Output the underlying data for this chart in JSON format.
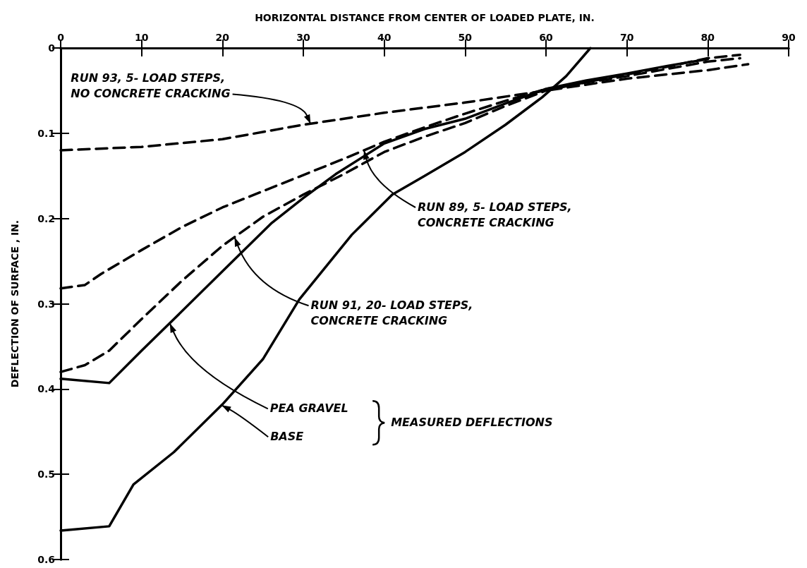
{
  "chart_data": {
    "type": "line",
    "xlabel": "HORIZONTAL DISTANCE FROM CENTER OF LOADED PLATE, IN.",
    "ylabel": "DEFLECTION OF SURFACE , IN.",
    "xlim": [
      0,
      90
    ],
    "xticks": [
      0,
      10,
      20,
      30,
      40,
      50,
      60,
      70,
      80,
      90
    ],
    "ylim": [
      0.6,
      0
    ],
    "yticks": [
      0,
      0.1,
      0.2,
      0.3,
      0.4,
      0.5,
      0.6
    ],
    "grid": false,
    "marker": "none",
    "series": [
      {
        "color": "#000000",
        "line_style": "dashed",
        "x": [
          0,
          10,
          20,
          30,
          40,
          50,
          60,
          70,
          80,
          85
        ],
        "values": [
          0.12,
          0.116,
          0.107,
          0.09,
          0.076,
          0.064,
          0.05,
          0.036,
          0.026,
          0.019
        ]
      },
      {
        "color": "#000000",
        "line_style": "dashed",
        "x": [
          0,
          3,
          5,
          10,
          15,
          20,
          25,
          30,
          35,
          40,
          45,
          50,
          55,
          60,
          70,
          80,
          84
        ],
        "values": [
          0.282,
          0.278,
          0.265,
          0.237,
          0.21,
          0.187,
          0.168,
          0.149,
          0.13,
          0.11,
          0.093,
          0.077,
          0.062,
          0.048,
          0.033,
          0.016,
          0.012
        ]
      },
      {
        "color": "#000000",
        "line_style": "dashed",
        "x": [
          0,
          3,
          6,
          10,
          15,
          20,
          25,
          30,
          35,
          40,
          45,
          50,
          55,
          60,
          65,
          70,
          75,
          80,
          84
        ],
        "values": [
          0.38,
          0.372,
          0.355,
          0.318,
          0.273,
          0.232,
          0.198,
          0.172,
          0.148,
          0.122,
          0.104,
          0.088,
          0.068,
          0.05,
          0.04,
          0.031,
          0.022,
          0.012,
          0.008
        ]
      },
      {
        "color": "#000000",
        "line_style": "solid",
        "x": [
          0,
          6,
          10,
          14,
          20,
          26,
          30,
          34,
          40,
          45,
          50,
          55,
          60,
          65,
          70,
          75,
          80
        ],
        "values": [
          0.388,
          0.393,
          0.355,
          0.318,
          0.262,
          0.206,
          0.176,
          0.148,
          0.112,
          0.095,
          0.083,
          0.065,
          0.048,
          0.038,
          0.03,
          0.021,
          0.013
        ]
      },
      {
        "color": "#000000",
        "line_style": "solid",
        "x": [
          0,
          6,
          9,
          14,
          20,
          25,
          29.5,
          36,
          41,
          45,
          50,
          55,
          59.5,
          62.5,
          65.5
        ],
        "values": [
          0.566,
          0.561,
          0.512,
          0.474,
          0.418,
          0.365,
          0.295,
          0.219,
          0.172,
          0.15,
          0.122,
          0.09,
          0.058,
          0.033,
          0
        ]
      }
    ],
    "annotations": [
      {
        "text": "RUN 93, 5- LOAD STEPS,\nNO CONCRETE CRACKING",
        "x": 30.9,
        "y": 0.089
      },
      {
        "text": "RUN 89, 5- LOAD STEPS,\nCONCRETE CRACKING",
        "x": 37.5,
        "y": 0.12
      },
      {
        "text": "RUN 91, 20- LOAD STEPS,\nCONCRETE CRACKING",
        "x": 21.5,
        "y": 0.222
      },
      {
        "text": "PEA GRAVEL",
        "x": 13.5,
        "y": 0.323
      },
      {
        "text": "BASE",
        "x": 19.9,
        "y": 0.419
      },
      "MEASURED DEFLECTIONS"
    ]
  }
}
